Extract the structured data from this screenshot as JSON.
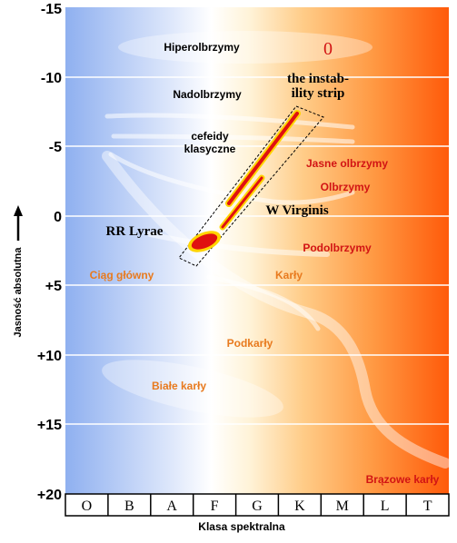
{
  "diagram": {
    "y_axis_label": "Jasność absolutna",
    "x_axis_label": "Klasa spektralna",
    "magnitude_ticks": [
      "-15",
      "-10",
      "-5",
      "0",
      "+5",
      "+10",
      "+15",
      "+20"
    ],
    "spectral_classes": [
      "O",
      "B",
      "A",
      "F",
      "G",
      "K",
      "M",
      "L",
      "T"
    ],
    "regions": {
      "hypergiants": "Hiperolbrzymy",
      "supergiants": "Nadolbrzymy",
      "classical_cepheids_line1": "cefeidy",
      "classical_cepheids_line2": "klasyczne",
      "bright_giants": "Jasne olbrzymy",
      "giants": "Olbrzymy",
      "subgiants": "Podolbrzymy",
      "dwarfs": "Karły",
      "main_sequence": "Ciąg główny",
      "subdwarfs": "Podkarły",
      "white_dwarfs": "Białe karły",
      "brown_dwarfs": "Brązowe karły"
    },
    "annotations": {
      "zero_label": "0",
      "instability_strip_line1": "the instab-",
      "instability_strip_line2": "ility strip",
      "w_virginis": "W Virginis",
      "rr_lyrae": "RR Lyrae"
    },
    "colors": {
      "blue_end": "#8fb0f0",
      "red_end": "#ff5a0a",
      "region_text_black": "#000000",
      "region_text_red": "#d21414",
      "region_text_orange": "#e87a1e",
      "variable_red": "#e01010",
      "variable_yellow": "#ffd400"
    }
  }
}
